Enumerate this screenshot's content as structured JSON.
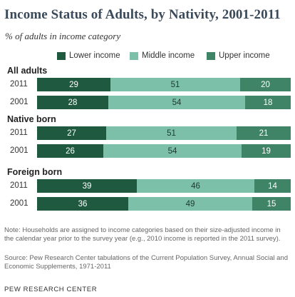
{
  "title": "Income Status of Adults, by Nativity, 2001-2011",
  "subtitle": "% of adults in income category",
  "colors": {
    "lower": "#1f5a40",
    "middle": "#7cc0aa",
    "upper": "#3f8466"
  },
  "chart_data": {
    "type": "bar",
    "orientation": "horizontal",
    "stacked": true,
    "series_names": [
      "Lower income",
      "Middle income",
      "Upper income"
    ],
    "groups": [
      {
        "name": "All adults",
        "rows": [
          {
            "year": "2011",
            "values": [
              29,
              51,
              20
            ]
          },
          {
            "year": "2001",
            "values": [
              28,
              54,
              18
            ]
          }
        ]
      },
      {
        "name": "Native born",
        "rows": [
          {
            "year": "2011",
            "values": [
              27,
              51,
              21
            ]
          },
          {
            "year": "2001",
            "values": [
              26,
              54,
              19
            ]
          }
        ]
      },
      {
        "name": "Foreign born",
        "rows": [
          {
            "year": "2011",
            "values": [
              39,
              46,
              14
            ]
          },
          {
            "year": "2001",
            "values": [
              36,
              49,
              15
            ]
          }
        ]
      }
    ],
    "xlim": [
      0,
      100
    ],
    "legend": "top"
  },
  "note": "Note: Households are assigned to income categories based on their size-adjusted income in the calendar year prior to the survey year (e.g., 2010 income is reported in the 2011 survey).",
  "source": "Source: Pew Research Center tabulations of the Current Population Survey, Annual Social and Economic Supplements, 1971-2011",
  "credit": "PEW RESEARCH CENTER"
}
